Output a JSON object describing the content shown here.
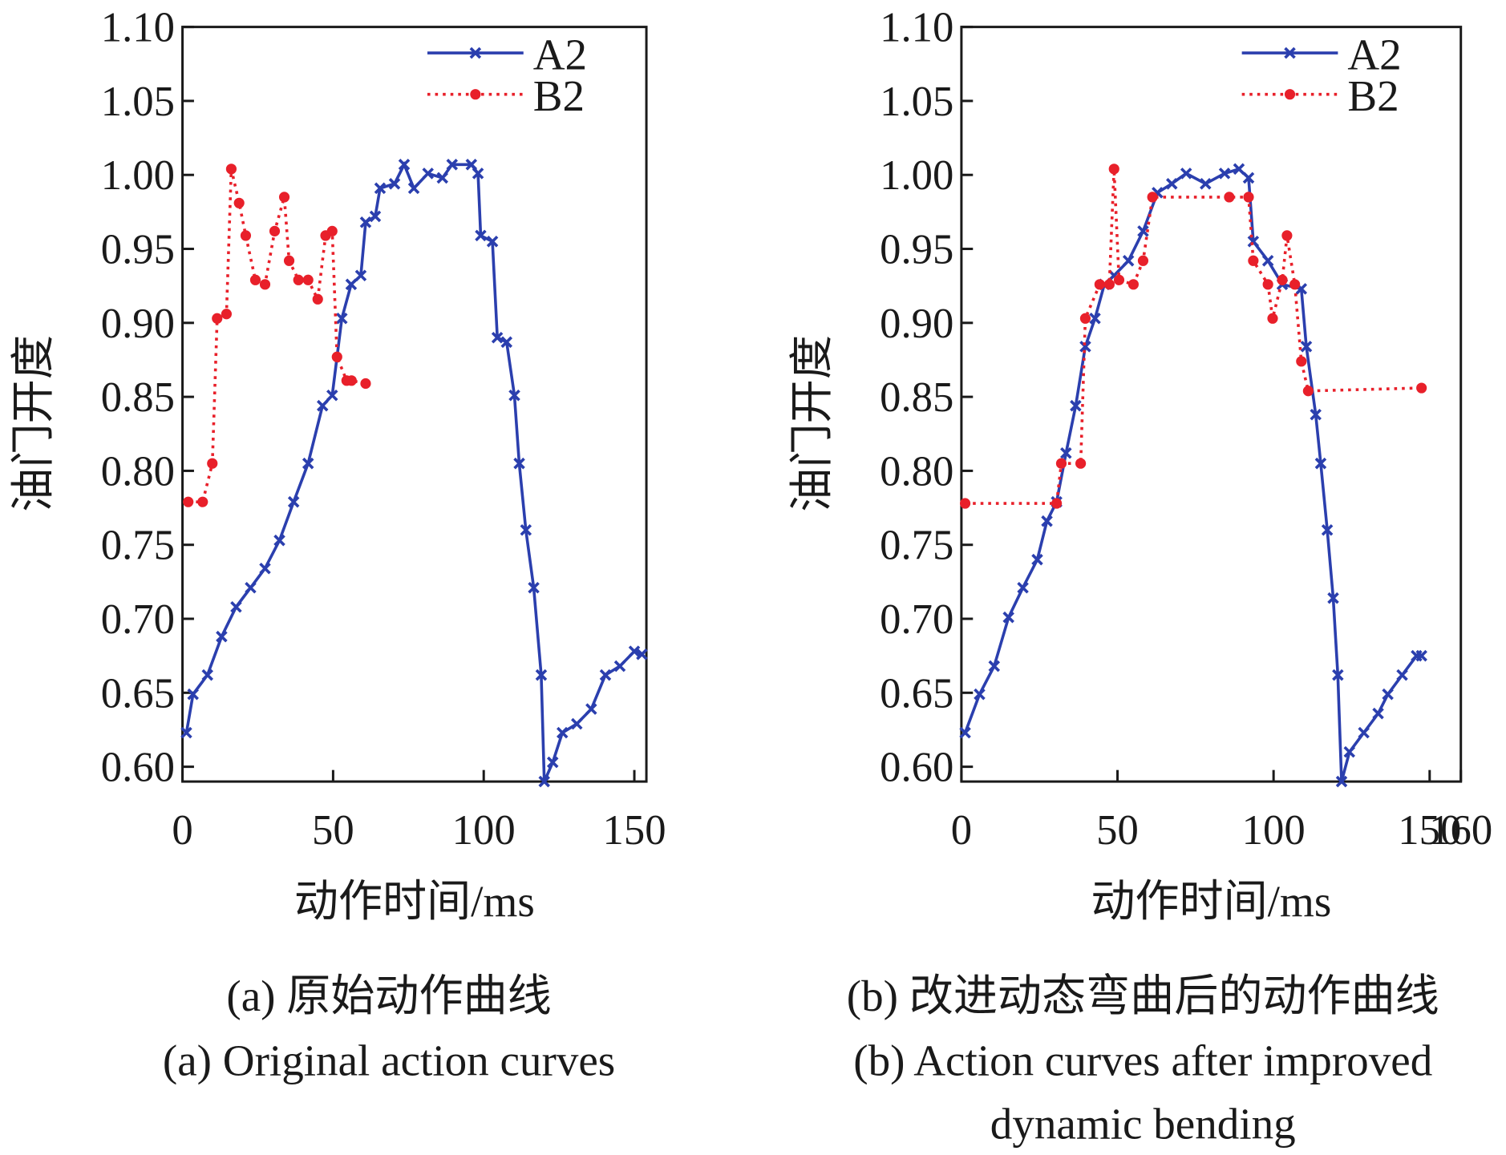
{
  "chart_data": [
    {
      "type": "line",
      "xlabel": "动作时间/ms",
      "ylabel": "油门开度",
      "caption_cn": "(a) 原始动作曲线",
      "caption_en": [
        "(a) Original action curves"
      ],
      "xlim": [
        0,
        154
      ],
      "ylim": [
        0.59,
        1.1
      ],
      "xticks": [
        0,
        50,
        100,
        150
      ],
      "yticks": [
        {
          "value": 0.6,
          "label": "0.60"
        },
        0.65,
        {
          "value": 0.7,
          "label": "0.70"
        },
        0.75,
        {
          "value": 0.8,
          "label": "0.80"
        },
        0.85,
        {
          "value": 0.9,
          "label": "0.90"
        },
        0.95,
        {
          "value": 1.0,
          "label": "1.00"
        },
        1.05,
        {
          "value": 1.1,
          "label": "1.10"
        }
      ],
      "legend": "upper right",
      "series": [
        {
          "name": "A2",
          "color": "#2b3fae",
          "linestyle": "solid",
          "marker": "x",
          "x": [
            1.3,
            3.5,
            8.3,
            13,
            17.8,
            22.6,
            27.4,
            32.2,
            36.9,
            41.7,
            46.5,
            49.7,
            52.9,
            56,
            59.2,
            60.8,
            64,
            65.6,
            70.4,
            73.6,
            76.8,
            81.5,
            86.3,
            89.5,
            95.9,
            98.1,
            99,
            102.9,
            104.5,
            107.6,
            110.2,
            111.8,
            114,
            116.6,
            119.1,
            120.1,
            122.9,
            126.1,
            130.9,
            135.7,
            140.4,
            145.2,
            150,
            152.5
          ],
          "values": [
            0.623,
            0.649,
            0.662,
            0.688,
            0.708,
            0.721,
            0.734,
            0.753,
            0.779,
            0.805,
            0.844,
            0.851,
            0.903,
            0.926,
            0.932,
            0.968,
            0.972,
            0.991,
            0.994,
            1.007,
            0.991,
            1.001,
            0.998,
            1.007,
            1.007,
            1.001,
            0.959,
            0.955,
            0.89,
            0.887,
            0.851,
            0.805,
            0.76,
            0.721,
            0.662,
            0.59,
            0.603,
            0.623,
            0.629,
            0.639,
            0.662,
            0.668,
            0.678,
            0.676
          ]
        },
        {
          "name": "B2",
          "color": "#e8202a",
          "linestyle": "dotted",
          "marker": "o",
          "x": [
            1.9,
            6.7,
            9.9,
            11.5,
            14.6,
            16.2,
            18.8,
            21,
            24.2,
            27.4,
            30.6,
            33.8,
            35.4,
            38.5,
            41.7,
            44.9,
            47.5,
            49.7,
            51.3,
            54.5,
            56.1,
            60.8
          ],
          "values": [
            0.779,
            0.779,
            0.805,
            0.903,
            0.906,
            1.004,
            0.981,
            0.959,
            0.929,
            0.926,
            0.962,
            0.985,
            0.942,
            0.929,
            0.929,
            0.916,
            0.959,
            0.962,
            0.877,
            0.861,
            0.861,
            0.859
          ]
        }
      ]
    },
    {
      "type": "line",
      "xlabel": "动作时间/ms",
      "ylabel": "油门开度",
      "caption_cn": "(b) 改进动态弯曲后的动作曲线",
      "caption_en": [
        "(b) Action curves after improved",
        "dynamic bending"
      ],
      "xlim": [
        0,
        160
      ],
      "ylim": [
        0.59,
        1.1
      ],
      "xticks": [
        0,
        50,
        100,
        150,
        160
      ],
      "yticks": [
        {
          "value": 0.6,
          "label": "0.60"
        },
        0.65,
        {
          "value": 0.7,
          "label": "0.70"
        },
        0.75,
        {
          "value": 0.8,
          "label": "0.80"
        },
        0.85,
        {
          "value": 0.9,
          "label": "0.90"
        },
        0.95,
        {
          "value": 1.0,
          "label": "1.00"
        },
        1.05,
        {
          "value": 1.1,
          "label": "1.10"
        }
      ],
      "legend": "upper right",
      "series": [
        {
          "name": "A2",
          "color": "#2b3fae",
          "linestyle": "solid",
          "marker": "x",
          "x": [
            1.2,
            5.8,
            10.5,
            15.1,
            19.7,
            24.3,
            27.4,
            30.5,
            33.5,
            36.6,
            39.7,
            42.8,
            45.8,
            48.9,
            53.5,
            58.2,
            62.8,
            67.4,
            72,
            78.2,
            84.3,
            88.9,
            92,
            93.5,
            98.2,
            102.8,
            108.9,
            110.5,
            113.5,
            115.1,
            117.2,
            119.1,
            120.6,
            121.8,
            124.3,
            128.9,
            133.5,
            136.6,
            141.2,
            145.8,
            147.4
          ],
          "values": [
            0.623,
            0.649,
            0.668,
            0.701,
            0.721,
            0.74,
            0.766,
            0.779,
            0.812,
            0.844,
            0.884,
            0.903,
            0.926,
            0.932,
            0.942,
            0.962,
            0.988,
            0.994,
            1.001,
            0.994,
            1.001,
            1.004,
            0.998,
            0.955,
            0.942,
            0.926,
            0.923,
            0.884,
            0.838,
            0.805,
            0.76,
            0.714,
            0.662,
            0.59,
            0.61,
            0.623,
            0.636,
            0.649,
            0.662,
            0.675,
            0.675
          ]
        },
        {
          "name": "B2",
          "color": "#e8202a",
          "linestyle": "dotted",
          "marker": "o",
          "x": [
            1.2,
            30.5,
            32,
            38.2,
            39.7,
            44.3,
            47.4,
            48.9,
            50.5,
            55.1,
            58.2,
            61.2,
            85.8,
            92,
            93.5,
            98.2,
            99.7,
            102.8,
            104.3,
            106.8,
            108.9,
            111.1,
            147.4
          ],
          "values": [
            0.778,
            0.778,
            0.805,
            0.805,
            0.903,
            0.926,
            0.926,
            1.004,
            0.929,
            0.926,
            0.942,
            0.985,
            0.985,
            0.985,
            0.942,
            0.926,
            0.903,
            0.929,
            0.959,
            0.926,
            0.874,
            0.854,
            0.856
          ]
        }
      ]
    }
  ]
}
